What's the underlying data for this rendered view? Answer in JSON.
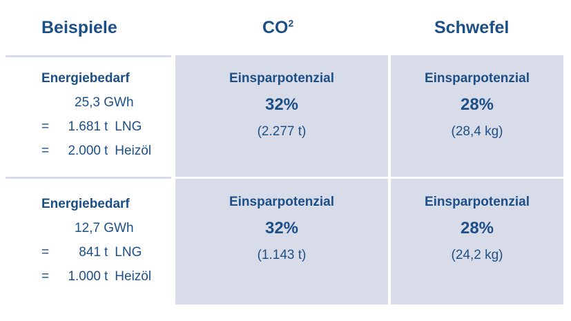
{
  "headers": {
    "examples": "Beispiele",
    "co2_main": "CO",
    "co2_sup": "2",
    "sulfur": "Schwefel"
  },
  "rows": [
    {
      "left": {
        "title": "Energiebedarf",
        "energy": "25,3 GWh",
        "lng_prefix": "=",
        "lng_num": "1.681",
        "lng_unit": "t",
        "lng_fuel": "LNG",
        "oil_prefix": "=",
        "oil_num": "2.000",
        "oil_unit": "t",
        "oil_fuel": "Heizöl"
      },
      "co2": {
        "label": "Einsparpotenzial",
        "percent": "32%",
        "amount": "(2.277 t)"
      },
      "sulfur": {
        "label": "Einsparpotenzial",
        "percent": "28%",
        "amount": "(28,4 kg)"
      }
    },
    {
      "left": {
        "title": "Energiebedarf",
        "energy": "12,7 GWh",
        "lng_prefix": "=",
        "lng_num": "841",
        "lng_unit": "t",
        "lng_fuel": "LNG",
        "oil_prefix": "=",
        "oil_num": "1.000",
        "oil_unit": "t",
        "oil_fuel": "Heizöl"
      },
      "co2": {
        "label": "Einsparpotenzial",
        "percent": "32%",
        "amount": "(1.143 t)"
      },
      "sulfur": {
        "label": "Einsparpotenzial",
        "percent": "28%",
        "amount": "(24,2 kg)"
      }
    }
  ],
  "colors": {
    "text": "#1d4f87",
    "cell_background": "#d8dce9",
    "divider": "#d7dbe6"
  }
}
